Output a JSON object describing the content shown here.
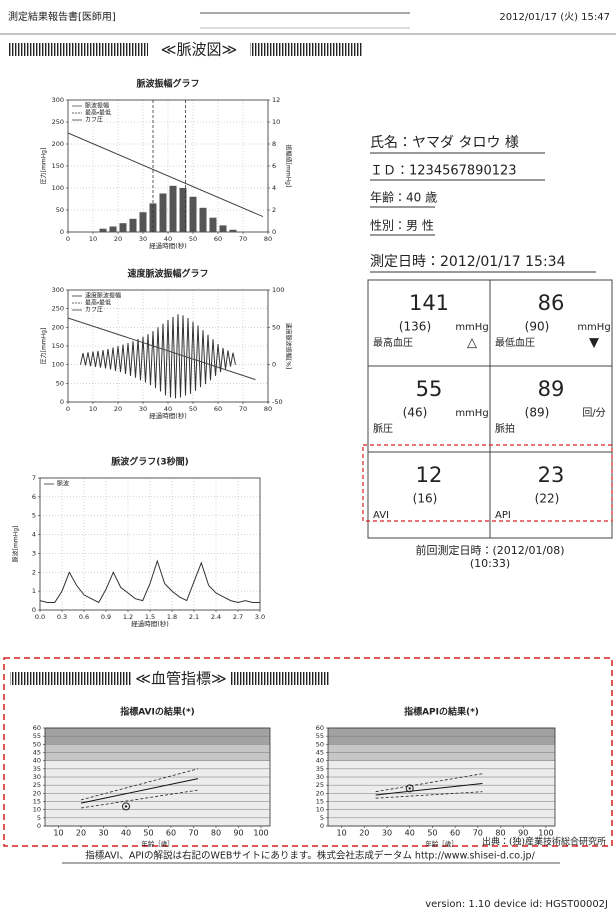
{
  "header": {
    "title": "測定結果報告書[医師用]",
    "datetime": "2012/01/17 (火) 15:47"
  },
  "pulse_section": {
    "heading": "≪脈波図≫"
  },
  "patient": {
    "name": "氏名：ヤマダ タロウ 様",
    "id": "ＩＤ：1234567890123",
    "age": "年齢：40 歳",
    "sex": "性別：男 性",
    "measured": "測定日時：2012/01/17 15:34"
  },
  "results": {
    "cells": [
      {
        "value": 141,
        "previous": "(136)",
        "unit": "mmHg",
        "label": "最高血圧",
        "marker": "△"
      },
      {
        "value": 86,
        "previous": "(90)",
        "unit": "mmHg",
        "label": "最低血圧",
        "marker": "▼"
      },
      {
        "value": 55,
        "previous": "(46)",
        "unit": "mmHg",
        "label": "脈圧"
      },
      {
        "value": 89,
        "previous": "(89)",
        "unit": "回/分",
        "label": "脈拍"
      },
      {
        "value": 12,
        "previous": "(16)",
        "label": "AVI"
      },
      {
        "value": 23,
        "previous": "(22)",
        "label": "API"
      }
    ],
    "previous_date": "前回測定日時：(2012/01/08)",
    "previous_time": "(10:33)"
  },
  "vascular_section": {
    "heading": "≪血管指標≫"
  },
  "chart_data": [
    {
      "type": "bar",
      "title": "脈波振幅グラフ",
      "xlabel": "経過時間(秒)",
      "ylabel": "圧力[mmHg]",
      "y2label": "振幅値[mmHg]",
      "xlim": [
        0,
        80
      ],
      "xticks": [
        0,
        10,
        20,
        30,
        40,
        50,
        60,
        70,
        80
      ],
      "ylim": [
        0,
        300
      ],
      "yticks": [
        0,
        50,
        100,
        150,
        200,
        250,
        300
      ],
      "y2lim": [
        0,
        12
      ],
      "y2ticks": [
        0,
        2,
        4,
        6,
        8,
        10,
        12
      ],
      "grid": true,
      "legend": "upper left",
      "series": [
        {
          "name": "脈波振幅",
          "type": "bar",
          "axis": "y2",
          "color": "#555555",
          "x": [
            14,
            18,
            22,
            26,
            30,
            34,
            38,
            42,
            46,
            50,
            54,
            58,
            62,
            66
          ],
          "values": [
            0.3,
            0.5,
            0.8,
            1.2,
            1.8,
            2.6,
            3.5,
            4.2,
            4.0,
            3.2,
            2.2,
            1.3,
            0.6,
            0.2
          ]
        },
        {
          "name": "最高・最低",
          "type": "vline",
          "color": "#333333",
          "dash": true,
          "x": [
            34,
            47
          ]
        },
        {
          "name": "カフ圧",
          "type": "line",
          "color": "#444444",
          "x": [
            0,
            78
          ],
          "values": [
            225,
            35
          ]
        }
      ]
    },
    {
      "type": "line",
      "title": "速度脈波振幅グラフ",
      "xlabel": "経過時間(秒)",
      "ylabel": "圧力[mmHg]",
      "y2label": "速度脈波振幅[%]",
      "xlim": [
        0,
        80
      ],
      "xticks": [
        0,
        10,
        20,
        30,
        40,
        50,
        60,
        70,
        80
      ],
      "ylim": [
        0,
        300
      ],
      "yticks": [
        0,
        50,
        100,
        150,
        200,
        250,
        300
      ],
      "y2lim": [
        -50,
        100
      ],
      "y2ticks": [
        -50,
        0,
        50,
        100
      ],
      "grid": true,
      "legend": "upper left",
      "series": [
        {
          "name": "速度脈波振幅",
          "type": "line",
          "color": "#333333",
          "x": [
            5,
            6,
            7,
            8,
            9,
            10,
            11,
            12,
            13,
            14,
            15,
            16,
            17,
            18,
            19,
            20,
            21,
            22,
            23,
            24,
            25,
            26,
            27,
            28,
            29,
            30,
            31,
            32,
            33,
            34,
            35,
            36,
            37,
            38,
            39,
            40,
            41,
            42,
            43,
            44,
            45,
            46,
            47,
            48,
            49,
            50,
            51,
            52,
            53,
            54,
            55,
            56,
            57,
            58,
            59,
            60,
            61,
            62,
            63,
            64,
            65,
            66,
            67
          ],
          "values": [
            100,
            131,
            98,
            133,
            96,
            135,
            94,
            137,
            92,
            139,
            90,
            142,
            87,
            146,
            83,
            150,
            80,
            154,
            75,
            158,
            70,
            163,
            65,
            169,
            58,
            175,
            52,
            182,
            45,
            190,
            37,
            200,
            28,
            210,
            18,
            220,
            12,
            228,
            10,
            235,
            12,
            232,
            18,
            225,
            22,
            215,
            30,
            205,
            40,
            192,
            48,
            180,
            58,
            168,
            70,
            155,
            80,
            145,
            88,
            138,
            95,
            132,
            100
          ]
        },
        {
          "name": "最高・最低",
          "type": "vline",
          "color": "#333333",
          "dash": true
        },
        {
          "name": "カフ圧",
          "type": "line",
          "color": "#444444",
          "x": [
            0,
            75
          ],
          "values": [
            225,
            60
          ]
        }
      ]
    },
    {
      "type": "line",
      "title": "脈波グラフ(3秒間)",
      "xlabel": "経過時間(秒)",
      "ylabel": "脈波[mmHg]",
      "xlim": [
        0,
        3
      ],
      "xticks": [
        {
          "value": 0,
          "label": "0.0"
        },
        0.3,
        0.6,
        0.9,
        1.2,
        1.5,
        1.8,
        2.1,
        2.4,
        2.7,
        {
          "value": 3,
          "label": "3.0"
        }
      ],
      "ylim": [
        0,
        7
      ],
      "yticks": [
        0,
        1,
        2,
        3,
        4,
        5,
        6,
        7
      ],
      "grid": true,
      "legend": "upper left",
      "series": [
        {
          "name": "脈波",
          "type": "line",
          "color": "#333333",
          "x": [
            0,
            0.1,
            0.2,
            0.3,
            0.4,
            0.5,
            0.6,
            0.7,
            0.8,
            0.9,
            1,
            1.1,
            1.2,
            1.3,
            1.4,
            1.5,
            1.6,
            1.7,
            1.8,
            1.9,
            2,
            2.1,
            2.2,
            2.3,
            2.4,
            2.5,
            2.6,
            2.7,
            2.8,
            2.9,
            3
          ],
          "values": [
            0.5,
            0.4,
            0.4,
            1.0,
            2.0,
            1.3,
            0.8,
            0.6,
            0.4,
            1.1,
            2.0,
            1.2,
            0.9,
            0.6,
            0.5,
            1.4,
            2.6,
            1.4,
            1.0,
            0.7,
            0.5,
            1.5,
            2.5,
            1.3,
            0.9,
            0.7,
            0.5,
            0.4,
            0.5,
            0.4,
            0.4
          ]
        }
      ]
    },
    {
      "type": "line",
      "title": "指標AVIの結果(*)",
      "xlabel": "年齢［歳］",
      "xlim": [
        4,
        104
      ],
      "xticks": [
        10,
        20,
        30,
        40,
        50,
        60,
        70,
        80,
        90,
        100
      ],
      "ylim": [
        0,
        60
      ],
      "yticks": [
        0,
        5,
        10,
        15,
        20,
        25,
        30,
        35,
        40,
        45,
        50,
        55,
        60
      ],
      "grid": true,
      "bands": [
        {
          "from": 0,
          "to": 40,
          "color": "#ececec"
        },
        {
          "from": 40,
          "to": 50,
          "color": "#c6c6c6"
        },
        {
          "from": 50,
          "to": 60,
          "color": "#a2a2a2"
        }
      ],
      "series": [
        {
          "type": "line",
          "color": "#222222",
          "dash": true,
          "x": [
            20,
            72
          ],
          "values": [
            11,
            22
          ]
        },
        {
          "type": "line",
          "color": "#111111",
          "x": [
            20,
            72
          ],
          "values": [
            14,
            29
          ]
        },
        {
          "type": "line",
          "color": "#222222",
          "dash": true,
          "x": [
            20,
            72
          ],
          "values": [
            16,
            35
          ]
        },
        {
          "type": "scatter",
          "color": "#222222",
          "x": [
            40
          ],
          "values": [
            12
          ]
        }
      ]
    },
    {
      "type": "line",
      "title": "指標APIの結果(*)",
      "xlabel": "年齢［歳］",
      "xlim": [
        4,
        104
      ],
      "xticks": [
        10,
        20,
        30,
        40,
        50,
        60,
        70,
        80,
        90,
        100
      ],
      "ylim": [
        0,
        60
      ],
      "yticks": [
        0,
        5,
        10,
        15,
        20,
        25,
        30,
        35,
        40,
        45,
        50,
        55,
        60
      ],
      "grid": true,
      "bands": [
        {
          "from": 0,
          "to": 40,
          "color": "#ececec"
        },
        {
          "from": 40,
          "to": 50,
          "color": "#c6c6c6"
        },
        {
          "from": 50,
          "to": 60,
          "color": "#a2a2a2"
        }
      ],
      "series": [
        {
          "type": "line",
          "color": "#222222",
          "dash": true,
          "x": [
            25,
            72
          ],
          "values": [
            17,
            21
          ]
        },
        {
          "type": "line",
          "color": "#111111",
          "x": [
            25,
            72
          ],
          "values": [
            19,
            26
          ]
        },
        {
          "type": "line",
          "color": "#222222",
          "dash": true,
          "x": [
            25,
            72
          ],
          "values": [
            21,
            32
          ]
        },
        {
          "type": "scatter",
          "color": "#222222",
          "x": [
            40
          ],
          "values": [
            23
          ]
        }
      ]
    }
  ],
  "footer": {
    "source": "出典：(独)産業技術総合研究所",
    "note": "指標AVI、APIの解説は右記のWEBサイトにあります。株式会社志成データム http://www.shisei-d.co.jp/",
    "version": "version: 1.10 device id: HGST00002J"
  }
}
